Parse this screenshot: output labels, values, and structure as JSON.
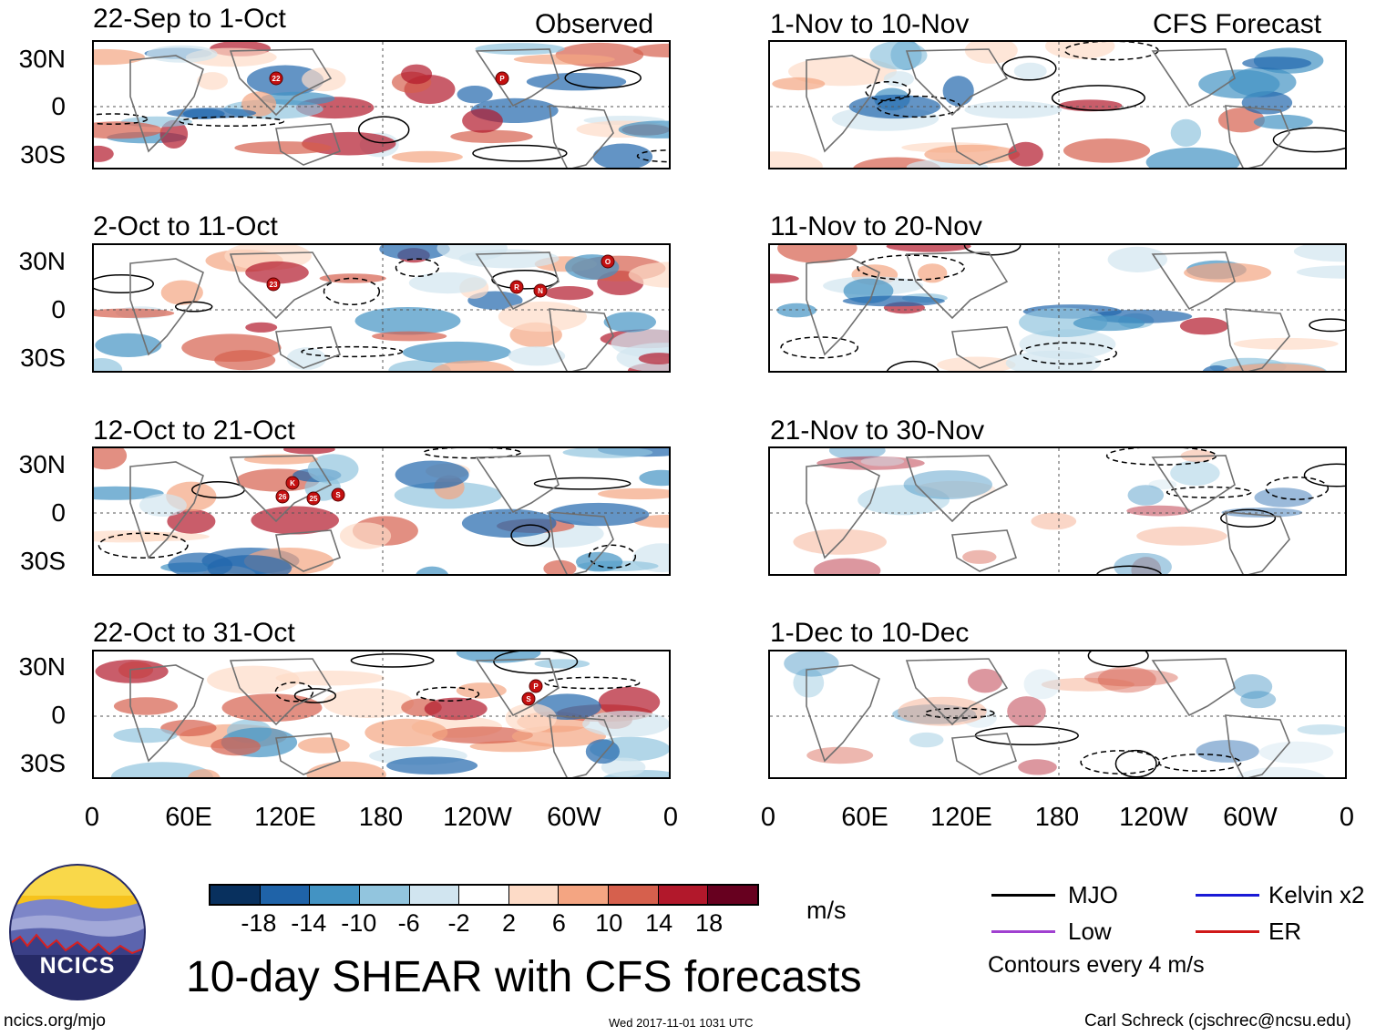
{
  "column_headers": {
    "left": "Observed",
    "right": "CFS Forecast"
  },
  "panels_left": [
    {
      "title": "22-Sep to 1-Oct",
      "storms": [
        "22",
        "P"
      ]
    },
    {
      "title": "2-Oct to 11-Oct",
      "storms": [
        "23",
        "R",
        "N",
        "O"
      ]
    },
    {
      "title": "12-Oct to 21-Oct",
      "storms": [
        "K",
        "26",
        "25",
        "S"
      ]
    },
    {
      "title": "22-Oct to 31-Oct",
      "storms": [
        "P",
        "S"
      ]
    }
  ],
  "panels_right": [
    {
      "title": "1-Nov to 10-Nov"
    },
    {
      "title": "11-Nov to 20-Nov"
    },
    {
      "title": "21-Nov to 30-Nov"
    },
    {
      "title": "1-Dec to 10-Dec"
    }
  ],
  "lat_labels": [
    "30N",
    "0",
    "30S"
  ],
  "lon_labels": [
    "0",
    "60E",
    "120E",
    "180",
    "120W",
    "60W",
    "0"
  ],
  "colorbar": {
    "ticks": [
      "-18",
      "-14",
      "-10",
      "-6",
      "-2",
      "2",
      "6",
      "10",
      "14",
      "18"
    ],
    "colors": [
      "#08305e",
      "#1f63a8",
      "#4393c3",
      "#92c5de",
      "#d1e5f0",
      "#ffffff",
      "#fddbc7",
      "#f4a582",
      "#d6604d",
      "#b2182b",
      "#67001f"
    ],
    "units": "m/s"
  },
  "legend": {
    "items": [
      {
        "label": "MJO",
        "color": "#000000"
      },
      {
        "label": "Kelvin x2",
        "color": "#1a1ad6"
      },
      {
        "label": "Low",
        "color": "#a040d0"
      },
      {
        "label": "ER",
        "color": "#d01818"
      }
    ],
    "note": "Contours every 4 m/s"
  },
  "logo_text": "NCICS",
  "main_title": "10-day SHEAR with CFS forecasts",
  "footer": {
    "url": "ncics.org/mjo",
    "timestamp": "Wed 2017-11-01 1031 UTC",
    "author": "Carl Schreck (cjschrec@ncsu.edu)"
  }
}
